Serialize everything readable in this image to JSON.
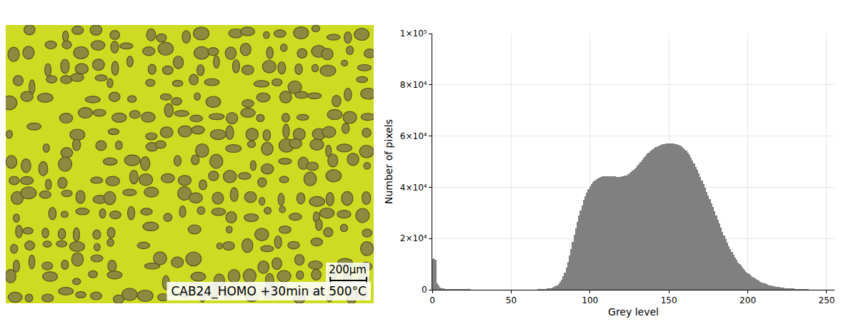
{
  "micrograph": {
    "caption": "CAB24_HOMO +30min at 500°C",
    "scale_bar": "200µm"
  },
  "chart_data": {
    "type": "bar",
    "x_label": "Grey level",
    "y_label": "Number of pixels",
    "color": "#808080",
    "grid": true,
    "xlim": [
      0,
      255
    ],
    "xticks": [
      0,
      50,
      100,
      150,
      200,
      250
    ],
    "ylim": [
      0,
      100000
    ],
    "yticks": [
      0,
      {
        "value": 20000,
        "label": "2×10⁴"
      },
      {
        "value": 40000,
        "label": "4×10⁴"
      },
      {
        "value": 60000,
        "label": "6×10⁴"
      },
      {
        "value": 80000,
        "label": "8×10⁴"
      },
      {
        "value": 100000,
        "label": "1×10⁵"
      }
    ],
    "x": [
      0,
      1,
      2,
      3,
      4,
      5,
      6,
      7,
      8,
      9,
      10,
      11,
      12,
      13,
      14,
      15,
      16,
      17,
      18,
      19,
      20,
      21,
      22,
      23,
      24,
      25,
      26,
      27,
      28,
      29,
      30,
      31,
      32,
      33,
      34,
      35,
      36,
      37,
      38,
      39,
      40,
      41,
      42,
      43,
      44,
      45,
      46,
      47,
      48,
      49,
      50,
      51,
      52,
      53,
      54,
      55,
      56,
      57,
      58,
      59,
      60,
      61,
      62,
      63,
      64,
      65,
      66,
      67,
      68,
      69,
      70,
      71,
      72,
      73,
      74,
      75,
      76,
      77,
      78,
      79,
      80,
      81,
      82,
      83,
      84,
      85,
      86,
      87,
      88,
      89,
      90,
      91,
      92,
      93,
      94,
      95,
      96,
      97,
      98,
      99,
      100,
      101,
      102,
      103,
      104,
      105,
      106,
      107,
      108,
      109,
      110,
      111,
      112,
      113,
      114,
      115,
      116,
      117,
      118,
      119,
      120,
      121,
      122,
      123,
      124,
      125,
      126,
      127,
      128,
      129,
      130,
      131,
      132,
      133,
      134,
      135,
      136,
      137,
      138,
      139,
      140,
      141,
      142,
      143,
      144,
      145,
      146,
      147,
      148,
      149,
      150,
      151,
      152,
      153,
      154,
      155,
      156,
      157,
      158,
      159,
      160,
      161,
      162,
      163,
      164,
      165,
      166,
      167,
      168,
      169,
      170,
      171,
      172,
      173,
      174,
      175,
      176,
      177,
      178,
      179,
      180,
      181,
      182,
      183,
      184,
      185,
      186,
      187,
      188,
      189,
      190,
      191,
      192,
      193,
      194,
      195,
      196,
      197,
      198,
      199,
      200,
      201,
      202,
      203,
      204,
      205,
      206,
      207,
      208,
      209,
      210,
      211,
      212,
      213,
      214,
      215,
      216,
      217,
      218,
      219,
      220,
      221,
      222,
      223,
      224,
      225,
      226,
      227,
      228,
      229,
      230,
      231,
      232,
      233,
      234,
      235,
      236,
      237,
      238,
      239,
      240,
      241,
      242,
      243,
      244,
      245,
      246,
      247,
      248,
      249,
      250,
      251,
      252,
      253,
      254,
      255
    ],
    "values": [
      12000,
      12300,
      11800,
      2600,
      1700,
      900,
      600,
      450,
      380,
      330,
      300,
      280,
      260,
      240,
      230,
      220,
      210,
      200,
      190,
      180,
      170,
      160,
      155,
      150,
      145,
      140,
      135,
      130,
      125,
      120,
      118,
      115,
      112,
      110,
      108,
      105,
      102,
      100,
      98,
      96,
      94,
      92,
      90,
      88,
      86,
      84,
      82,
      80,
      78,
      76,
      75,
      74,
      73,
      72,
      71,
      70,
      70,
      70,
      72,
      75,
      80,
      85,
      90,
      100,
      110,
      120,
      135,
      150,
      170,
      200,
      240,
      290,
      350,
      430,
      530,
      650,
      800,
      1000,
      1300,
      1700,
      2300,
      3000,
      4000,
      5200,
      6800,
      8700,
      11000,
      13500,
      16000,
      18800,
      21500,
      24000,
      26500,
      29000,
      31000,
      33000,
      35000,
      36500,
      38000,
      39200,
      40300,
      41200,
      42000,
      42600,
      43100,
      43500,
      43800,
      44000,
      44200,
      44300,
      44400,
      44400,
      44400,
      44300,
      44300,
      44200,
      44200,
      44100,
      44100,
      44100,
      44200,
      44300,
      44500,
      44700,
      45000,
      45400,
      45900,
      46400,
      47000,
      47700,
      48400,
      49100,
      49900,
      50700,
      51400,
      52100,
      52800,
      53400,
      54000,
      54500,
      55000,
      55400,
      55800,
      56100,
      56400,
      56600,
      56800,
      56900,
      57000,
      57100,
      57100,
      57100,
      57000,
      57000,
      56900,
      56800,
      56600,
      56300,
      56000,
      55500,
      55000,
      54300,
      53500,
      52600,
      51600,
      50500,
      49300,
      48000,
      46700,
      45300,
      43900,
      42500,
      41100,
      39700,
      38300,
      36800,
      35300,
      33800,
      32200,
      30600,
      29000,
      27400,
      25800,
      24200,
      22700,
      21200,
      19800,
      18400,
      17100,
      15900,
      14700,
      13600,
      12600,
      11600,
      10700,
      9900,
      9100,
      8400,
      7700,
      7100,
      6500,
      6000,
      5500,
      5000,
      4600,
      4200,
      3800,
      3500,
      3200,
      2900,
      2600,
      2400,
      2200,
      2000,
      1800,
      1650,
      1500,
      1350,
      1200,
      1100,
      1000,
      900,
      820,
      750,
      680,
      620,
      560,
      510,
      460,
      420,
      380,
      340,
      310,
      280,
      250,
      220,
      200,
      180,
      160,
      140,
      120,
      105,
      90,
      80,
      70,
      60,
      50,
      45,
      40,
      35,
      30,
      25,
      20,
      15,
      10,
      5
    ]
  }
}
